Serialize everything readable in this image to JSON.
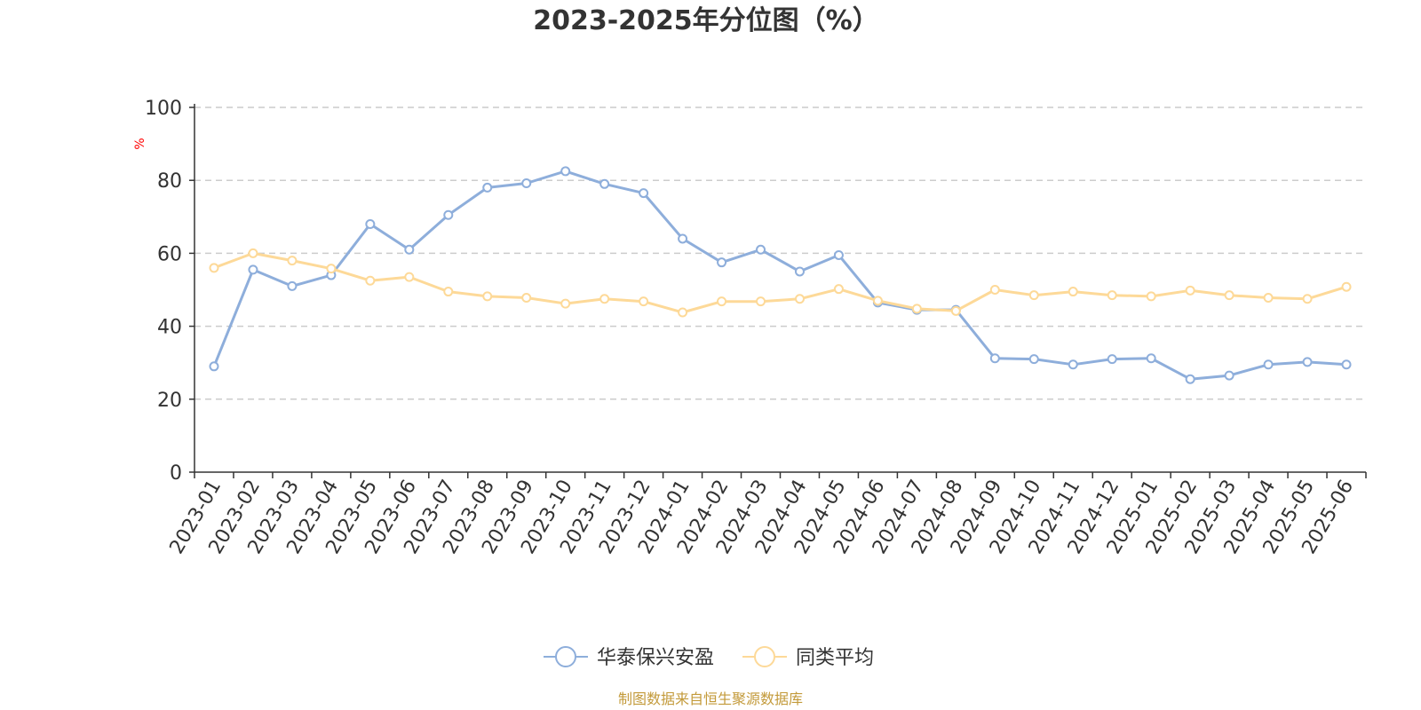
{
  "chart_data": {
    "type": "line",
    "title": "2023-2025年分位图（%）",
    "ylabel": "%",
    "ylim": [
      0,
      100
    ],
    "yticks": [
      "0",
      "20",
      "40",
      "60",
      "80",
      "100"
    ],
    "grid": true,
    "legend_position": "bottom",
    "categories": [
      "2023-01",
      "2023-02",
      "2023-03",
      "2023-04",
      "2023-05",
      "2023-06",
      "2023-07",
      "2023-08",
      "2023-09",
      "2023-10",
      "2023-11",
      "2023-12",
      "2024-01",
      "2024-02",
      "2024-03",
      "2024-04",
      "2024-05",
      "2024-06",
      "2024-07",
      "2024-08",
      "2024-09",
      "2024-10",
      "2024-11",
      "2024-12",
      "2025-01",
      "2025-02",
      "2025-03",
      "2025-04",
      "2025-05",
      "2025-06"
    ],
    "series": [
      {
        "name": "华泰保兴安盈",
        "color": "#8eaedb",
        "values": [
          29,
          55.5,
          51,
          54,
          68,
          61,
          70.5,
          78,
          79.2,
          82.5,
          79,
          76.5,
          64,
          57.5,
          61,
          55,
          59.5,
          46.5,
          44.5,
          44.5,
          31.2,
          31,
          29.5,
          31,
          31.2,
          25.5,
          26.5,
          29.5,
          30.2,
          29.5
        ]
      },
      {
        "name": "同类平均",
        "color": "#fdd998",
        "values": [
          56,
          60,
          58,
          55.8,
          52.5,
          53.5,
          49.5,
          48.2,
          47.8,
          46.2,
          47.5,
          46.8,
          43.8,
          46.8,
          46.8,
          47.5,
          50.2,
          47,
          44.8,
          44.2,
          50,
          48.5,
          49.5,
          48.5,
          48.2,
          49.8,
          48.5,
          47.8,
          47.5,
          50.8
        ]
      }
    ]
  },
  "unit_color": "#ff0000",
  "source_text": "制图数据来自恒生聚源数据库",
  "source_color": "#c39a3a"
}
